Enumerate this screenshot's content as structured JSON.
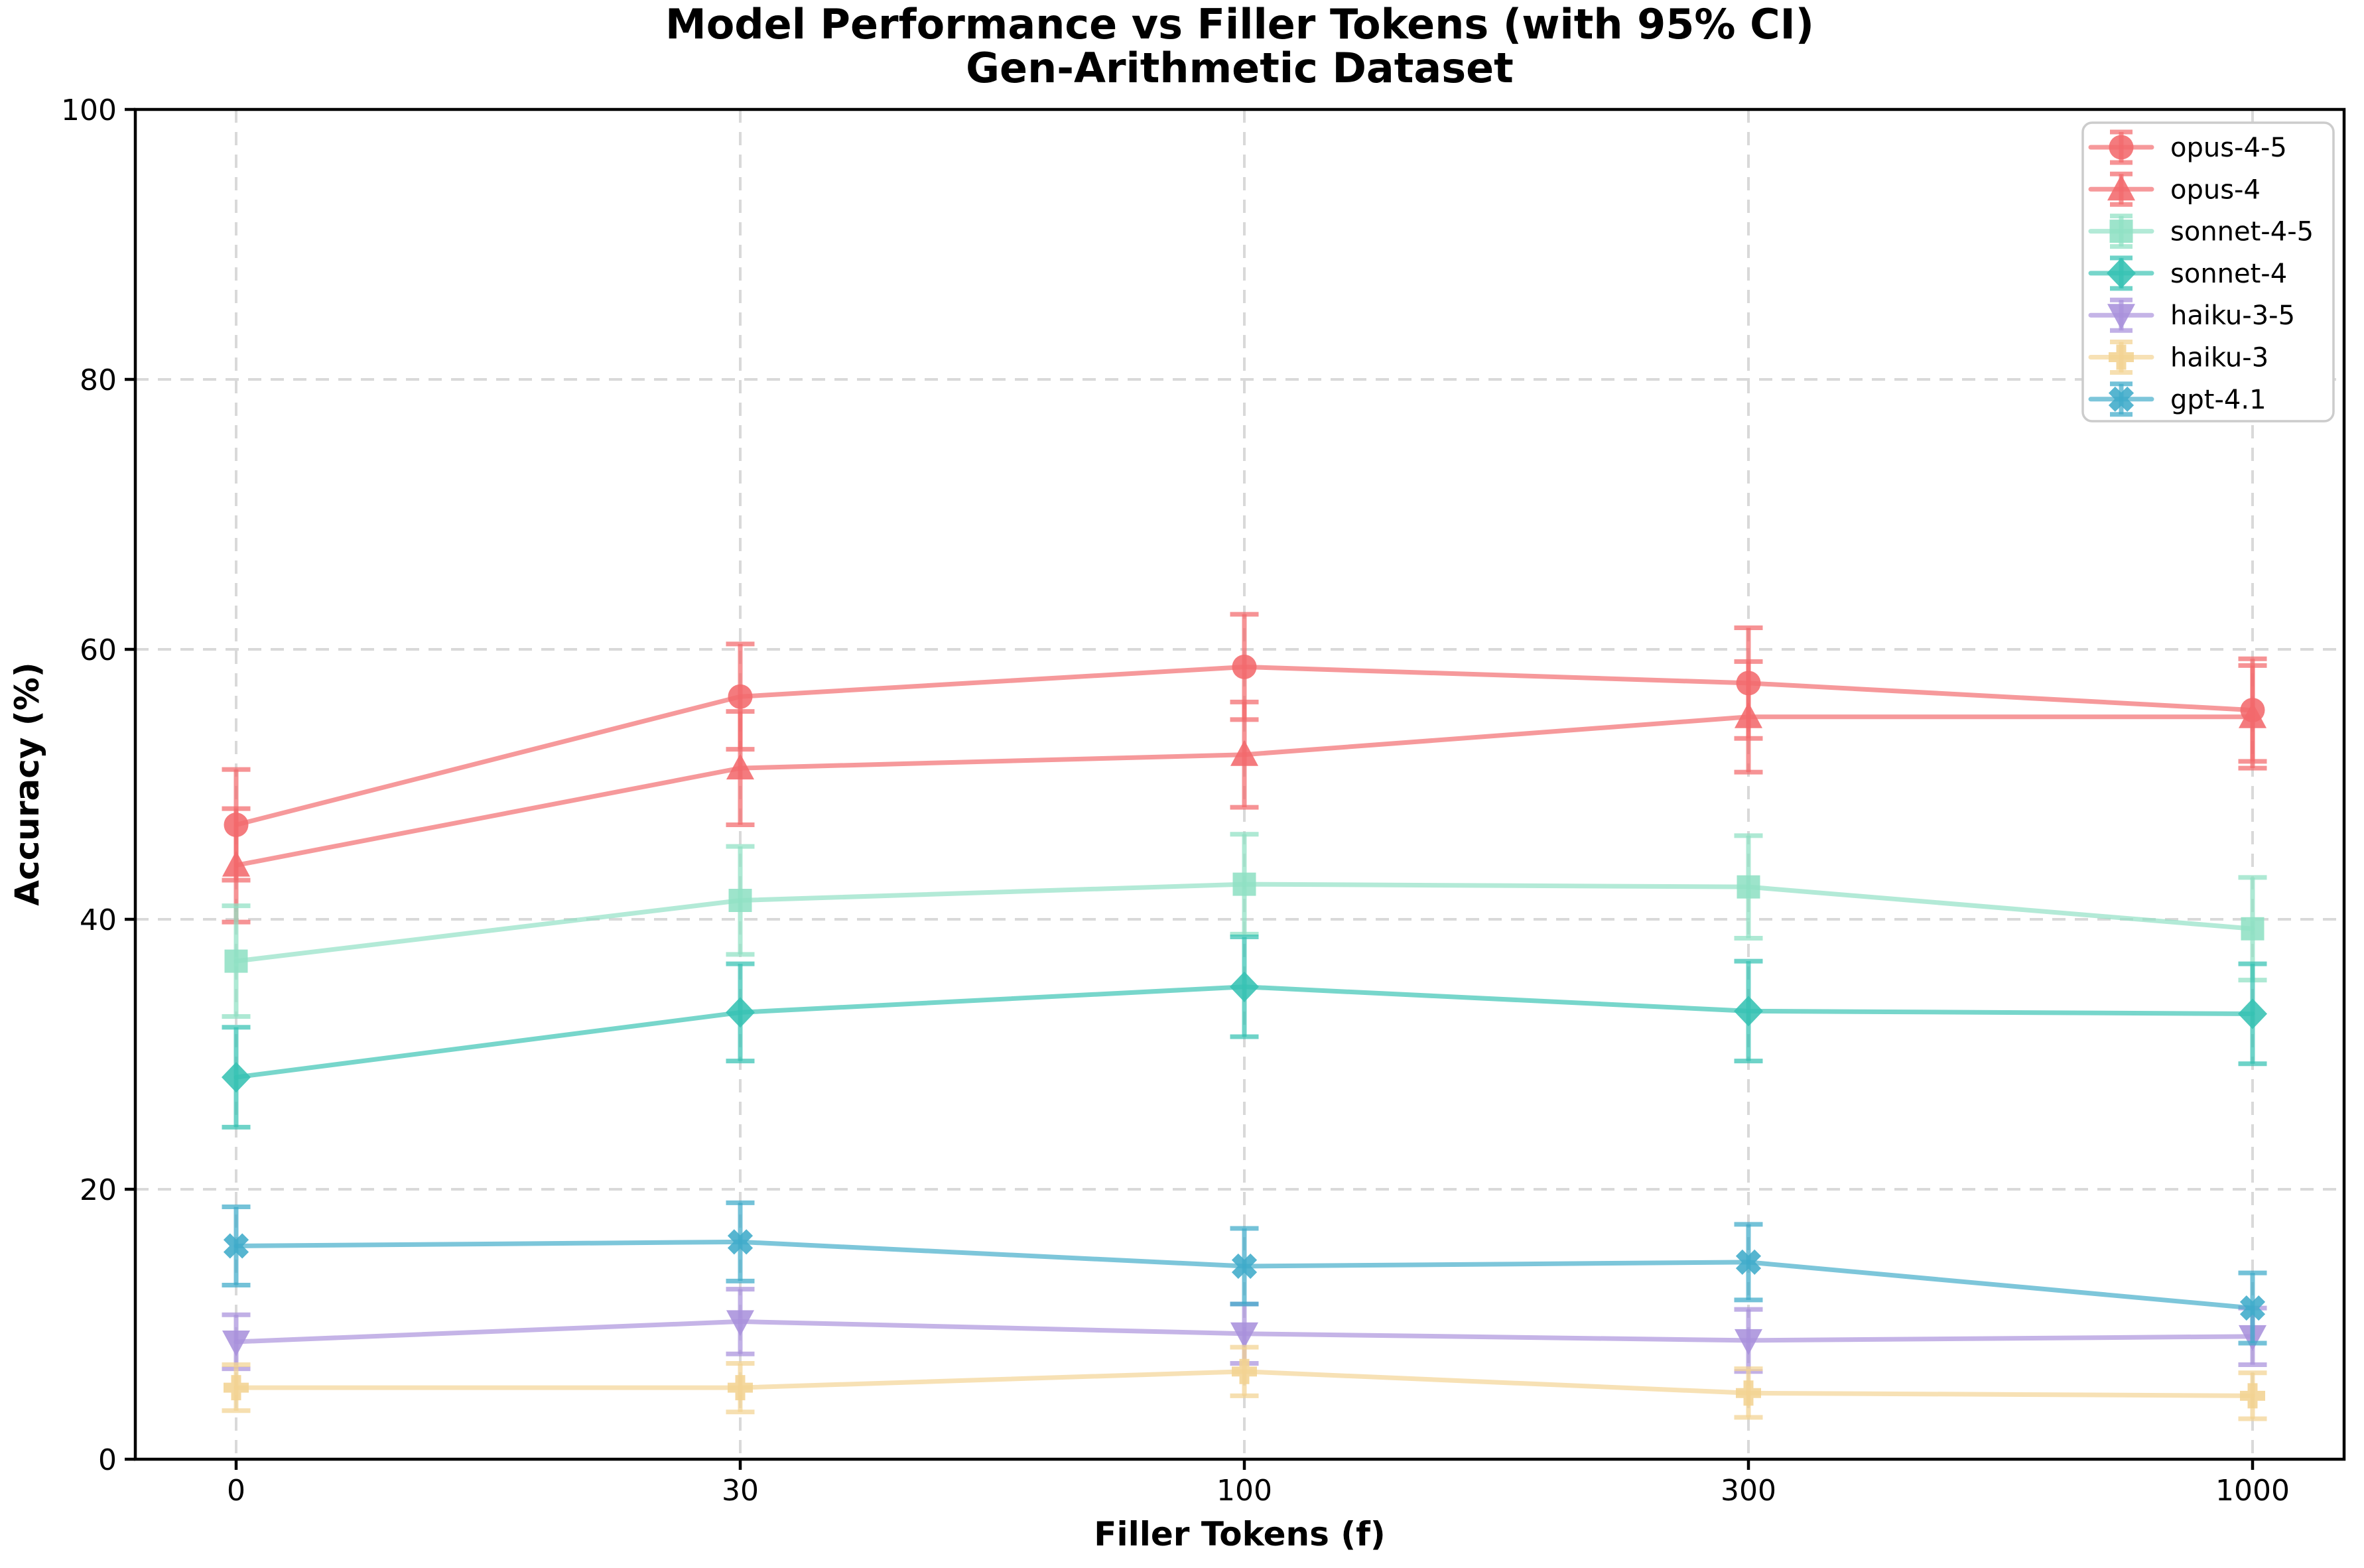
{
  "chart_data": {
    "type": "line",
    "title": "Model Performance vs Filler Tokens (with 95% CI)",
    "subtitle": "Gen-Arithmetic Dataset",
    "xlabel": "Filler Tokens (f)",
    "ylabel": "Accuracy (%)",
    "x_tick_labels": [
      "0",
      "30",
      "100",
      "300",
      "1000"
    ],
    "y_ticks": [
      0,
      20,
      40,
      60,
      80,
      100
    ],
    "ylim": [
      0,
      100
    ],
    "grid": true,
    "error_bars": "95% CI",
    "legend_position": "upper right",
    "series": [
      {
        "name": "opus-4-5",
        "color": "#F2696C",
        "marker": "circle",
        "values": [
          47.0,
          56.5,
          58.7,
          57.5,
          55.5
        ],
        "ci": [
          4.1,
          3.9,
          3.9,
          4.1,
          3.8
        ]
      },
      {
        "name": "opus-4",
        "color": "#F2696C",
        "marker": "triangle-up",
        "values": [
          44.0,
          51.2,
          52.2,
          55.0,
          55.0
        ],
        "ci": [
          4.2,
          4.2,
          3.9,
          4.1,
          3.8
        ]
      },
      {
        "name": "sonnet-4-5",
        "color": "#8FE0C4",
        "marker": "square",
        "values": [
          36.9,
          41.4,
          42.6,
          42.4,
          39.3
        ],
        "ci": [
          4.1,
          4.0,
          3.7,
          3.8,
          3.8
        ]
      },
      {
        "name": "sonnet-4",
        "color": "#36C2B3",
        "marker": "diamond",
        "values": [
          28.3,
          33.1,
          35.0,
          33.2,
          33.0
        ],
        "ci": [
          3.7,
          3.6,
          3.7,
          3.7,
          3.7
        ]
      },
      {
        "name": "haiku-3-5",
        "color": "#A991DC",
        "marker": "triangle-down",
        "values": [
          8.7,
          10.2,
          9.3,
          8.8,
          9.1
        ],
        "ci": [
          2.0,
          2.4,
          2.2,
          2.3,
          2.1
        ]
      },
      {
        "name": "haiku-3",
        "color": "#F3D392",
        "marker": "plus",
        "values": [
          5.3,
          5.3,
          6.5,
          4.9,
          4.7
        ],
        "ci": [
          1.7,
          1.8,
          1.8,
          1.8,
          1.7
        ]
      },
      {
        "name": "gpt-4.1",
        "color": "#3FABC9",
        "marker": "x",
        "values": [
          15.8,
          16.1,
          14.3,
          14.6,
          11.2
        ],
        "ci": [
          2.9,
          2.9,
          2.8,
          2.8,
          2.6
        ]
      }
    ]
  }
}
